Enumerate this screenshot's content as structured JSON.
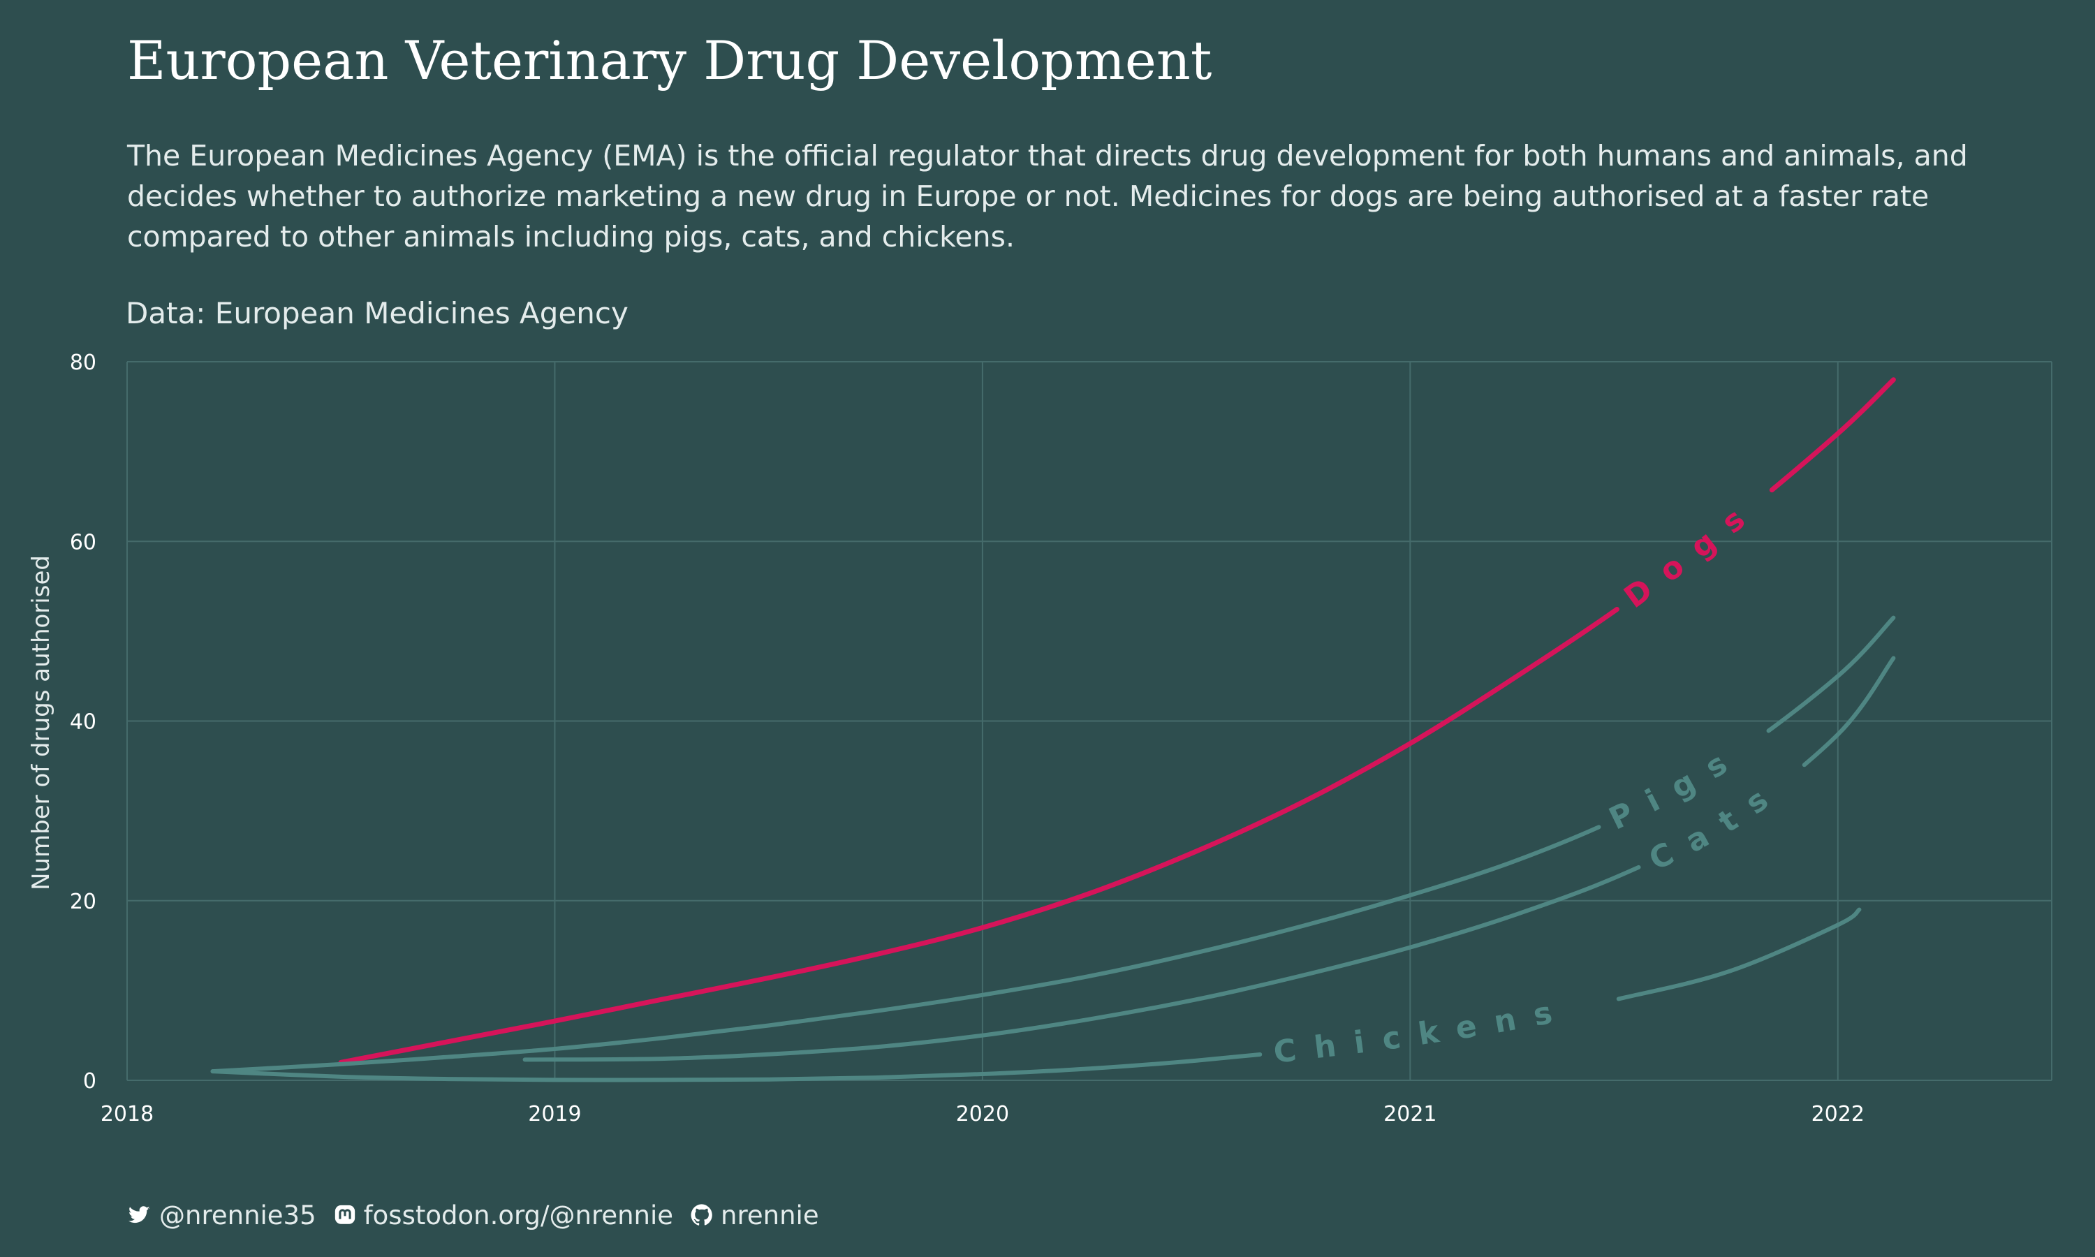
{
  "header": {
    "title": "European Veterinary Drug Development",
    "subtitle": "The European Medicines Agency (EMA) is the official regulator that directs drug development for both humans and animals, and decides whether to authorize marketing a new drug in Europe or not. Medicines for dogs are being authorised at a faster rate compared to other animals including pigs, cats, and chickens.",
    "caption": "Data: European Medicines Agency"
  },
  "chart_data": {
    "type": "line",
    "title": "European Veterinary Drug Development",
    "xlabel": "",
    "ylabel": "Number of drugs authorised",
    "xlim": [
      2018,
      2022.5
    ],
    "ylim": [
      0,
      80
    ],
    "xticks": [
      2018,
      2019,
      2020,
      2021,
      2022
    ],
    "yticks": [
      0,
      20,
      40,
      60,
      80
    ],
    "grid": true,
    "legend": "direct labels on lines",
    "series": [
      {
        "name": "Dogs",
        "color": "#d6145a",
        "highlight": true,
        "x": [
          2018.5,
          2018.75,
          2019,
          2019.25,
          2019.5,
          2019.75,
          2020,
          2020.25,
          2020.5,
          2020.75,
          2021,
          2021.25,
          2021.5,
          2021.75,
          2022,
          2022.13
        ],
        "y": [
          2,
          4.3,
          6.6,
          9,
          11.4,
          14,
          17,
          20.8,
          25.5,
          31,
          37.5,
          45,
          53,
          62,
          72,
          78
        ]
      },
      {
        "name": "Pigs",
        "color": "#4f8683",
        "highlight": false,
        "x": [
          2018.2,
          2018.5,
          2018.75,
          2019,
          2019.25,
          2019.5,
          2019.75,
          2020,
          2020.25,
          2020.5,
          2020.75,
          2021,
          2021.25,
          2021.5,
          2021.75,
          2022,
          2022.13
        ],
        "y": [
          1,
          1.8,
          2.6,
          3.5,
          4.7,
          6.1,
          7.7,
          9.5,
          11.6,
          14.2,
          17.2,
          20.6,
          24.5,
          29.5,
          36,
          45,
          51.5
        ]
      },
      {
        "name": "Cats",
        "color": "#4f8683",
        "highlight": false,
        "x": [
          2018.93,
          2019.25,
          2019.5,
          2019.75,
          2020,
          2020.25,
          2020.5,
          2020.75,
          2021,
          2021.25,
          2021.5,
          2021.75,
          2022,
          2022.13
        ],
        "y": [
          2.3,
          2.4,
          2.9,
          3.7,
          5,
          6.8,
          9,
          11.7,
          14.8,
          18.5,
          23,
          29,
          38.5,
          47
        ]
      },
      {
        "name": "Chickens",
        "color": "#4f8683",
        "highlight": false,
        "x": [
          2018.2,
          2018.5,
          2018.75,
          2019,
          2019.25,
          2019.5,
          2019.75,
          2020,
          2020.25,
          2020.5,
          2020.75,
          2021,
          2021.25,
          2021.5,
          2021.75,
          2022,
          2022.05
        ],
        "y": [
          1,
          0.4,
          0.15,
          0.05,
          0.05,
          0.1,
          0.3,
          0.7,
          1.3,
          2.2,
          3.4,
          4.9,
          6.8,
          9.2,
          12.2,
          17.3,
          19
        ]
      }
    ]
  },
  "footer": {
    "twitter": "@nrennie35",
    "mastodon": "fosstodon.org/@nrennie",
    "github": "nrennie"
  },
  "icons": [
    "twitter-icon",
    "mastodon-icon",
    "github-icon"
  ]
}
